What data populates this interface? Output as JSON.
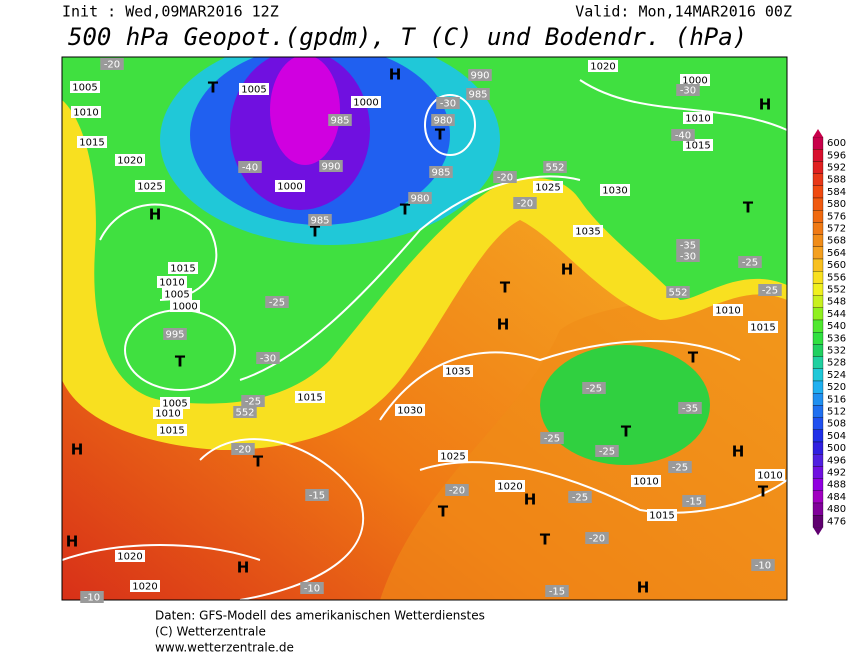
{
  "header": {
    "init": "Init : Wed,09MAR2016 12Z",
    "valid": "Valid: Mon,14MAR2016 00Z",
    "title": "500 hPa Geopot.(gpdm), T (C) und Bodendr. (hPa)"
  },
  "colorbar": {
    "ticks": [
      600,
      596,
      592,
      588,
      584,
      580,
      576,
      572,
      568,
      564,
      560,
      556,
      552,
      548,
      544,
      540,
      536,
      532,
      528,
      524,
      520,
      516,
      512,
      508,
      504,
      500,
      496,
      492,
      488,
      484,
      480,
      476
    ],
    "colors": [
      "#c8004a",
      "#d8102e",
      "#e02020",
      "#e83818",
      "#f04a10",
      "#f05a10",
      "#f06a10",
      "#f07a14",
      "#f08c18",
      "#f4a020",
      "#f8c020",
      "#f8e020",
      "#f0f020",
      "#c8f020",
      "#90f020",
      "#50e830",
      "#30e040",
      "#20d060",
      "#20d0a0",
      "#20c8d8",
      "#20b0f0",
      "#2090f0",
      "#2070f0",
      "#2050f0",
      "#2030e8",
      "#3020e0",
      "#5020e0",
      "#7010e0",
      "#9000e0",
      "#a000c0",
      "#80009a",
      "#600070"
    ]
  },
  "map_labels": [
    "H",
    "H",
    "H",
    "H",
    "H",
    "H",
    "H",
    "H",
    "H",
    "H",
    "H",
    "T",
    "T",
    "T",
    "T",
    "T",
    "T",
    "T",
    "T",
    "T",
    "T",
    "T",
    "T",
    "T",
    "1005",
    "1010",
    "1015",
    "1020",
    "1025",
    "1015",
    "1010",
    "1005",
    "1000",
    "995",
    "1005",
    "1010",
    "1015",
    "1015",
    "1035",
    "1030",
    "1025",
    "1020",
    "1015",
    "1010",
    "1030",
    "1035",
    "1025",
    "1000",
    "985",
    "990",
    "1000",
    "985",
    "980",
    "985",
    "980",
    "990",
    "985",
    "1020",
    "1000",
    "1010",
    "1015",
    "1010",
    "1015",
    "1010",
    "1020",
    "1020",
    "1005",
    "-20",
    "-40",
    "-30",
    "-20",
    "-20",
    "-25",
    "-30",
    "-25",
    "-20",
    "-15",
    "-20",
    "-25",
    "-25",
    "-25",
    "-25",
    "-20",
    "-15",
    "-10",
    "-10",
    "-10",
    "-15",
    "-25",
    "-35",
    "-30",
    "-25",
    "-25",
    "552",
    "552",
    "552",
    "-35",
    "-40",
    "-30"
  ],
  "footer": [
    "Daten: GFS-Modell des amerikanischen Wetterdienstes",
    "(C) Wetterzentrale",
    "www.wetterzentrale.de"
  ]
}
